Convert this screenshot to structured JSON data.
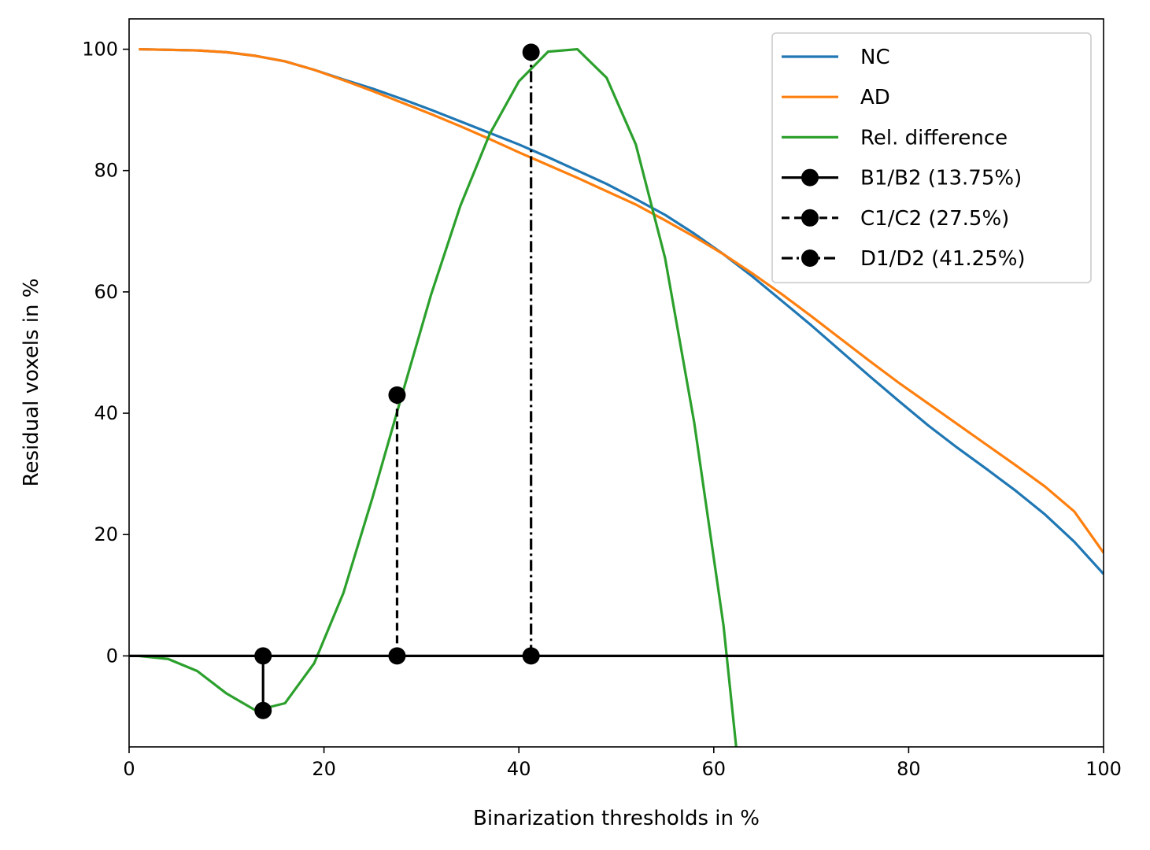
{
  "chart_data": {
    "type": "line",
    "title": "",
    "xlabel": "Binarization thresholds in %",
    "ylabel": "Residual voxels in %",
    "xlim": [
      0,
      100
    ],
    "ylim": [
      -15,
      105
    ],
    "xticks": [
      0,
      20,
      40,
      60,
      80,
      100
    ],
    "yticks": [
      0,
      20,
      40,
      60,
      80,
      100
    ],
    "grid": false,
    "legend_position": "top-right",
    "series": [
      {
        "name": "NC",
        "color": "#1f77b4",
        "x": [
          1,
          4,
          7,
          10,
          13,
          16,
          19,
          22,
          25,
          28,
          31,
          34,
          37,
          40,
          43,
          46,
          49,
          52,
          55,
          58,
          61,
          64,
          67,
          70,
          73,
          76,
          79,
          82,
          85,
          88,
          91,
          94,
          97,
          100
        ],
        "y": [
          100,
          99.9,
          99.8,
          99.5,
          98.9,
          98,
          96.6,
          95,
          93.5,
          91.8,
          90,
          88.1,
          86.2,
          84.3,
          82.2,
          80,
          77.8,
          75.3,
          72.7,
          69.6,
          66.2,
          62.5,
          58.5,
          54.5,
          50.3,
          46.1,
          42,
          38,
          34.3,
          30.8,
          27.2,
          23.3,
          18.8,
          13.5
        ]
      },
      {
        "name": "AD",
        "color": "#ff7f0e",
        "x": [
          1,
          4,
          7,
          10,
          13,
          16,
          19,
          22,
          25,
          28,
          31,
          34,
          37,
          40,
          43,
          46,
          49,
          52,
          55,
          58,
          61,
          64,
          67,
          70,
          73,
          76,
          79,
          82,
          85,
          88,
          91,
          94,
          97,
          100
        ],
        "y": [
          100,
          99.9,
          99.8,
          99.5,
          98.9,
          98,
          96.6,
          94.9,
          93.1,
          91.2,
          89.3,
          87.3,
          85.2,
          83,
          80.9,
          78.8,
          76.6,
          74.4,
          71.8,
          69.1,
          66.2,
          63,
          59.6,
          56,
          52.3,
          48.6,
          45,
          41.6,
          38.2,
          34.8,
          31.4,
          27.9,
          23.8,
          17
        ]
      },
      {
        "name": "Rel. difference",
        "color": "#2ca02c",
        "x": [
          1,
          4,
          7,
          10,
          13,
          16,
          19,
          22,
          25,
          28,
          31,
          34,
          37,
          40,
          43,
          46,
          49,
          52,
          55,
          58,
          61,
          62.3
        ],
        "y": [
          0,
          -0.5,
          -2.5,
          -6.2,
          -9,
          -7.8,
          -1.2,
          10.4,
          26.2,
          43,
          59.6,
          74.2,
          86,
          94.7,
          99.6,
          100,
          95.3,
          84.3,
          65.6,
          38.4,
          5,
          -15
        ]
      }
    ],
    "reference_lines": [
      {
        "name": "",
        "y": 0,
        "color": "#000000"
      }
    ],
    "markers": [
      {
        "name": "B1/B2 (13.75%)",
        "x": 13.75,
        "y1": 0,
        "y2": -9,
        "style": "solid",
        "color": "#000000"
      },
      {
        "name": "C1/C2 (27.5%)",
        "x": 27.5,
        "y1": 0,
        "y2": 43,
        "style": "dashed",
        "color": "#000000"
      },
      {
        "name": "D1/D2 (41.25%)",
        "x": 41.25,
        "y1": 0,
        "y2": 99.5,
        "style": "dashdot",
        "color": "#000000"
      }
    ]
  }
}
